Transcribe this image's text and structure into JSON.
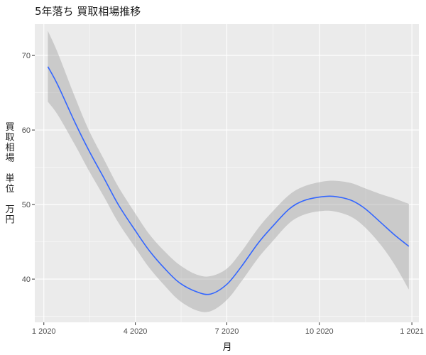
{
  "chart_data": {
    "type": "line",
    "title": "5年落ち 買取相場推移",
    "xlabel": "月",
    "ylabel": "買取相場 単位 万円",
    "ylabel_lines": [
      "買",
      "取",
      "相",
      "場",
      "",
      "単",
      "位",
      "",
      "万",
      "円"
    ],
    "x_ticks": [
      {
        "date": "2020-01-01",
        "label": "1 2020"
      },
      {
        "date": "2020-04-01",
        "label": "4 2020"
      },
      {
        "date": "2020-07-01",
        "label": "7 2020"
      },
      {
        "date": "2020-10-01",
        "label": "10 2020"
      },
      {
        "date": "2021-01-01",
        "label": "1 2021"
      }
    ],
    "y_ticks": [
      40,
      50,
      60,
      70
    ],
    "xlim": [
      "2019-12-23",
      "2021-01-08"
    ],
    "ylim": [
      34.2,
      74.2
    ],
    "grid": true,
    "series": [
      {
        "color": "#3366ff",
        "points": [
          {
            "x": "2020-01-05",
            "y": 68.5
          },
          {
            "x": "2020-01-15",
            "y": 66.0
          },
          {
            "x": "2020-02-01",
            "y": 61.0
          },
          {
            "x": "2020-02-15",
            "y": 57.2
          },
          {
            "x": "2020-03-01",
            "y": 53.5
          },
          {
            "x": "2020-03-15",
            "y": 50.0
          },
          {
            "x": "2020-04-01",
            "y": 46.5
          },
          {
            "x": "2020-04-15",
            "y": 43.8
          },
          {
            "x": "2020-05-01",
            "y": 41.3
          },
          {
            "x": "2020-05-15",
            "y": 39.5
          },
          {
            "x": "2020-06-01",
            "y": 38.3
          },
          {
            "x": "2020-06-15",
            "y": 38.0
          },
          {
            "x": "2020-07-01",
            "y": 39.3
          },
          {
            "x": "2020-07-15",
            "y": 41.6
          },
          {
            "x": "2020-08-01",
            "y": 44.8
          },
          {
            "x": "2020-08-15",
            "y": 47.0
          },
          {
            "x": "2020-09-01",
            "y": 49.4
          },
          {
            "x": "2020-09-15",
            "y": 50.5
          },
          {
            "x": "2020-10-01",
            "y": 51.0
          },
          {
            "x": "2020-10-15",
            "y": 51.1
          },
          {
            "x": "2020-11-01",
            "y": 50.6
          },
          {
            "x": "2020-11-15",
            "y": 49.5
          },
          {
            "x": "2020-12-01",
            "y": 47.6
          },
          {
            "x": "2020-12-15",
            "y": 45.9
          },
          {
            "x": "2020-12-29",
            "y": 44.4
          }
        ]
      }
    ],
    "confidence_band": {
      "color": "#999999",
      "points": [
        {
          "x": "2020-01-05",
          "lo": 63.8,
          "hi": 73.3
        },
        {
          "x": "2020-01-15",
          "lo": 62.0,
          "hi": 70.3
        },
        {
          "x": "2020-02-01",
          "lo": 58.0,
          "hi": 64.4
        },
        {
          "x": "2020-02-15",
          "lo": 54.5,
          "hi": 59.9
        },
        {
          "x": "2020-03-01",
          "lo": 51.0,
          "hi": 56.0
        },
        {
          "x": "2020-03-15",
          "lo": 47.6,
          "hi": 52.4
        },
        {
          "x": "2020-04-01",
          "lo": 44.2,
          "hi": 48.8
        },
        {
          "x": "2020-04-15",
          "lo": 41.5,
          "hi": 46.0
        },
        {
          "x": "2020-05-01",
          "lo": 39.0,
          "hi": 43.6
        },
        {
          "x": "2020-05-15",
          "lo": 37.1,
          "hi": 41.9
        },
        {
          "x": "2020-06-01",
          "lo": 35.8,
          "hi": 40.6
        },
        {
          "x": "2020-06-15",
          "lo": 35.7,
          "hi": 40.4
        },
        {
          "x": "2020-07-01",
          "lo": 37.2,
          "hi": 41.4
        },
        {
          "x": "2020-07-15",
          "lo": 39.6,
          "hi": 43.6
        },
        {
          "x": "2020-08-01",
          "lo": 42.8,
          "hi": 46.8
        },
        {
          "x": "2020-08-15",
          "lo": 45.0,
          "hi": 49.0
        },
        {
          "x": "2020-09-01",
          "lo": 47.5,
          "hi": 51.3
        },
        {
          "x": "2020-09-15",
          "lo": 48.6,
          "hi": 52.4
        },
        {
          "x": "2020-10-01",
          "lo": 49.1,
          "hi": 53.0
        },
        {
          "x": "2020-10-15",
          "lo": 49.1,
          "hi": 53.2
        },
        {
          "x": "2020-11-01",
          "lo": 48.4,
          "hi": 52.9
        },
        {
          "x": "2020-11-15",
          "lo": 47.0,
          "hi": 52.2
        },
        {
          "x": "2020-12-01",
          "lo": 44.6,
          "hi": 51.4
        },
        {
          "x": "2020-12-15",
          "lo": 41.9,
          "hi": 50.8
        },
        {
          "x": "2020-12-29",
          "lo": 38.6,
          "hi": 50.1
        }
      ]
    }
  }
}
